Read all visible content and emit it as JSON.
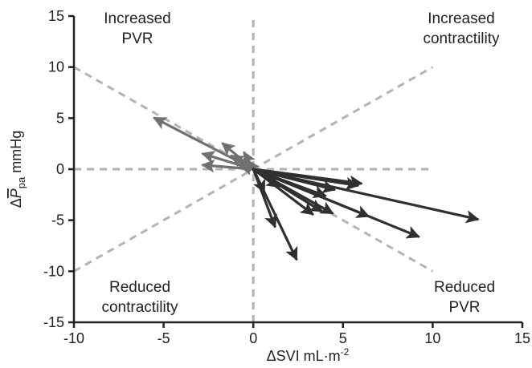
{
  "chart_data": {
    "type": "scatter",
    "xlabel": {
      "delta": "Δ",
      "text": "SVI mL·m",
      "sup": "-2"
    },
    "ylabel": {
      "delta": "Δ",
      "symbol": "P",
      "sub": "pa",
      "unit": " mmHg"
    },
    "xlim": [
      -10,
      15
    ],
    "ylim": [
      -15,
      15
    ],
    "xticks": [
      -10,
      -5,
      0,
      5,
      10,
      15
    ],
    "yticks": [
      -15,
      -10,
      -5,
      0,
      5,
      10,
      15
    ],
    "xtick_labels": [
      "-10",
      "-5",
      "0",
      "5",
      "10",
      "15"
    ],
    "ytick_labels": [
      "-15",
      "-10",
      "-5",
      "0",
      "5",
      "10",
      "15"
    ],
    "annotations": [
      {
        "lines": [
          "Increased",
          "PVR"
        ],
        "quadrant": "top-left"
      },
      {
        "lines": [
          "Increased",
          "contractility"
        ],
        "quadrant": "top-right"
      },
      {
        "lines": [
          "Reduced",
          "contractility"
        ],
        "quadrant": "bottom-left"
      },
      {
        "lines": [
          "Reduced",
          "PVR"
        ],
        "quadrant": "bottom-right"
      }
    ],
    "reference_lines": [
      {
        "from": [
          0,
          -15
        ],
        "to": [
          0,
          15
        ]
      },
      {
        "from": [
          -10,
          0
        ],
        "to": [
          10,
          0
        ]
      },
      {
        "from": [
          -10,
          10
        ],
        "to": [
          10,
          -10
        ]
      },
      {
        "from": [
          -10,
          -10
        ],
        "to": [
          10,
          10
        ]
      }
    ],
    "colors": {
      "arrows_negative_dx": "#707070",
      "arrows_positive_dx": "#303030",
      "reference": "#b3b3b3",
      "axis": "#222222"
    },
    "series": [
      {
        "group": "negative_dx",
        "vectors": [
          {
            "from": [
              0,
              0
            ],
            "to": [
              -5.5,
              5.0
            ]
          },
          {
            "from": [
              0,
              0
            ],
            "to": [
              -2.8,
              1.5
            ]
          },
          {
            "from": [
              0,
              0
            ],
            "to": [
              -2.8,
              0.4
            ]
          },
          {
            "from": [
              0,
              0
            ],
            "to": [
              -1.7,
              2.5
            ]
          },
          {
            "from": [
              0,
              0
            ],
            "to": [
              -1.2,
              1.3
            ]
          },
          {
            "from": [
              0,
              0
            ],
            "to": [
              -0.5,
              1.6
            ]
          },
          {
            "from": [
              0,
              0
            ],
            "to": [
              -0.7,
              0.3
            ]
          },
          {
            "from": [
              0,
              0
            ],
            "to": [
              -0.3,
              0.8
            ]
          }
        ]
      },
      {
        "group": "positive_dx",
        "vectors": [
          {
            "from": [
              0,
              0
            ],
            "to": [
              12.5,
              -4.9
            ]
          },
          {
            "from": [
              0,
              0
            ],
            "to": [
              9.2,
              -6.6
            ]
          },
          {
            "from": [
              0,
              0
            ],
            "to": [
              6.4,
              -4.6
            ]
          },
          {
            "from": [
              0,
              0
            ],
            "to": [
              6.0,
              -1.4
            ]
          },
          {
            "from": [
              0,
              0
            ],
            "to": [
              5.8,
              -1.6
            ]
          },
          {
            "from": [
              0,
              0
            ],
            "to": [
              4.5,
              -2.0
            ]
          },
          {
            "from": [
              0,
              0
            ],
            "to": [
              4.0,
              -2.6
            ]
          },
          {
            "from": [
              0,
              0
            ],
            "to": [
              4.4,
              -4.3
            ]
          },
          {
            "from": [
              0,
              0
            ],
            "to": [
              3.8,
              -4.1
            ]
          },
          {
            "from": [
              0,
              0
            ],
            "to": [
              3.3,
              -4.4
            ]
          },
          {
            "from": [
              0,
              0
            ],
            "to": [
              2.4,
              -8.8
            ]
          },
          {
            "from": [
              0,
              0
            ],
            "to": [
              1.2,
              -5.6
            ]
          },
          {
            "from": [
              0,
              0
            ],
            "to": [
              1.4,
              -1.7
            ]
          },
          {
            "from": [
              0,
              0
            ],
            "to": [
              0.6,
              -2.2
            ]
          }
        ]
      }
    ]
  }
}
